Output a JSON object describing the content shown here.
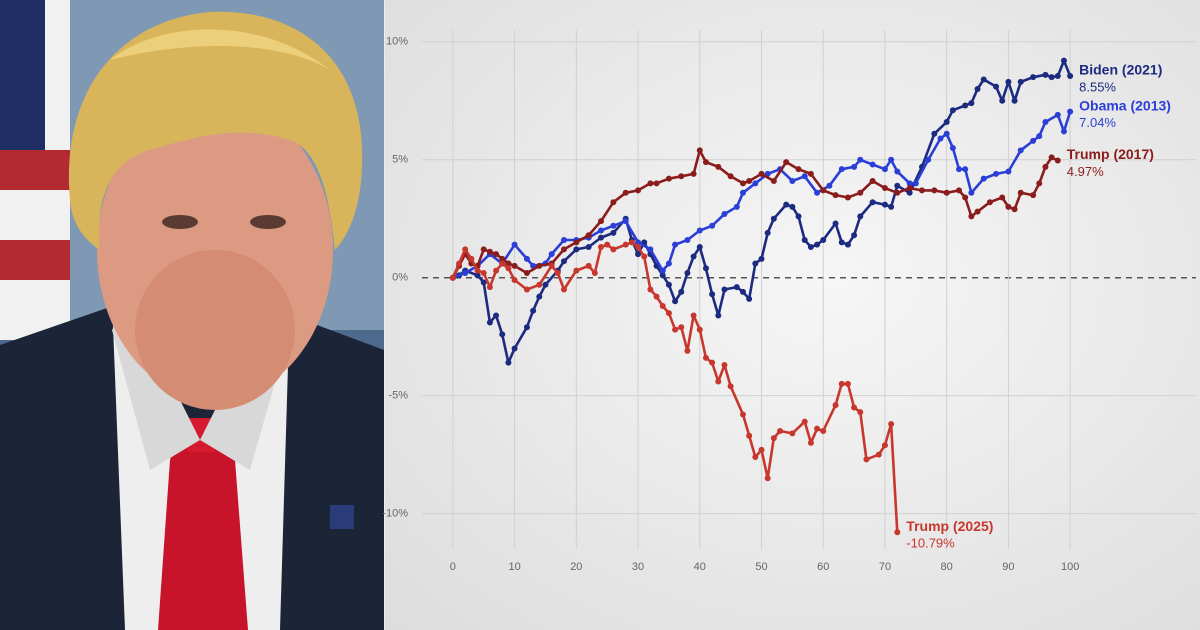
{
  "chart_data": {
    "type": "line",
    "xlim": [
      -5,
      105
    ],
    "ylim": [
      -11.5,
      10.5
    ],
    "xticks": [
      0,
      10,
      20,
      30,
      40,
      50,
      60,
      70,
      80,
      90,
      100
    ],
    "yticks": [
      {
        "value": 10,
        "label": "10%"
      },
      {
        "value": 5,
        "label": "5%"
      },
      {
        "value": 0,
        "label": "0%"
      },
      {
        "value": -5,
        "label": "-5%"
      },
      {
        "value": -10,
        "label": "-10%"
      }
    ],
    "grid": true,
    "series": [
      {
        "name": "Biden (2021)",
        "color": "#1c2a80",
        "x": [
          0,
          1,
          2,
          4,
          5,
          6,
          7,
          8,
          9,
          10,
          12,
          13,
          14,
          15,
          17,
          18,
          20,
          22,
          24,
          26,
          28,
          29,
          30,
          31,
          32,
          33,
          34,
          35,
          36,
          37,
          38,
          39,
          40,
          41,
          42,
          43,
          44,
          46,
          47,
          48,
          49,
          50,
          51,
          52,
          54,
          55,
          56,
          57,
          58,
          59,
          60,
          62,
          63,
          64,
          65,
          66,
          68,
          70,
          71,
          72,
          74,
          76,
          78,
          80,
          81,
          83,
          84,
          85,
          86,
          88,
          89,
          90,
          91,
          92,
          94,
          96,
          97,
          98,
          99,
          100
        ],
        "values": [
          0,
          0.1,
          0.3,
          0.1,
          -0.2,
          -1.9,
          -1.6,
          -2.4,
          -3.6,
          -3.0,
          -2.1,
          -1.4,
          -0.8,
          -0.3,
          0.3,
          0.7,
          1.2,
          1.3,
          1.7,
          1.9,
          2.5,
          1.6,
          1.0,
          1.5,
          1.0,
          0.5,
          0.1,
          -0.3,
          -1.0,
          -0.6,
          0.2,
          0.9,
          1.3,
          0.4,
          -0.7,
          -1.6,
          -0.5,
          -0.4,
          -0.6,
          -0.9,
          0.6,
          0.8,
          1.9,
          2.5,
          3.1,
          3.0,
          2.6,
          1.6,
          1.3,
          1.4,
          1.6,
          2.3,
          1.5,
          1.4,
          1.8,
          2.6,
          3.2,
          3.1,
          3.0,
          3.9,
          3.6,
          4.7,
          6.1,
          6.6,
          7.1,
          7.3,
          7.4,
          8.0,
          8.4,
          8.1,
          7.5,
          8.3,
          7.5,
          8.3,
          8.5,
          8.6,
          8.5,
          8.55,
          9.2,
          8.55
        ],
        "value_labels": [
          null,
          null,
          null,
          null,
          null,
          null,
          null,
          null,
          null,
          null,
          null,
          null,
          null,
          null,
          null,
          null,
          null,
          null,
          null,
          null,
          null,
          null,
          null,
          null,
          null,
          null,
          null,
          null,
          null,
          null,
          null,
          null,
          null,
          null,
          null,
          null,
          null,
          null,
          null,
          null,
          null,
          null,
          null,
          null,
          null,
          null,
          null,
          null,
          null,
          null,
          null,
          null,
          null,
          null,
          null,
          null,
          null,
          null,
          null,
          null,
          null,
          null,
          null,
          null,
          null,
          null,
          null,
          null,
          null,
          null,
          null,
          null,
          null,
          null,
          null,
          null,
          null,
          null,
          null,
          "8.55%"
        ]
      },
      {
        "name": "Obama (2013)",
        "color": "#2b3fd6",
        "x": [
          0,
          2,
          4,
          6,
          8,
          10,
          12,
          13,
          15,
          16,
          18,
          20,
          22,
          24,
          26,
          28,
          30,
          32,
          34,
          35,
          36,
          38,
          40,
          42,
          44,
          46,
          47,
          49,
          51,
          53,
          55,
          57,
          59,
          61,
          63,
          65,
          66,
          68,
          70,
          71,
          72,
          74,
          75,
          77,
          79,
          80,
          81,
          82,
          83,
          84,
          86,
          88,
          90,
          92,
          94,
          95,
          96,
          98,
          99,
          100
        ],
        "values": [
          0,
          0.2,
          0.5,
          1.0,
          0.6,
          1.4,
          0.8,
          0.5,
          0.6,
          1.0,
          1.6,
          1.6,
          1.7,
          2.0,
          2.2,
          2.4,
          1.5,
          1.2,
          0.3,
          0.6,
          1.4,
          1.6,
          2.0,
          2.2,
          2.7,
          3.0,
          3.6,
          4.0,
          4.4,
          4.6,
          4.1,
          4.3,
          3.6,
          3.9,
          4.6,
          4.7,
          5.0,
          4.8,
          4.6,
          5.0,
          4.5,
          4.0,
          4.0,
          5.0,
          5.9,
          6.1,
          5.5,
          4.6,
          4.6,
          3.6,
          4.2,
          4.4,
          4.5,
          5.4,
          5.8,
          6.0,
          6.6,
          6.9,
          6.2,
          7.04
        ],
        "value_labels": [
          null,
          null,
          null,
          null,
          null,
          null,
          null,
          null,
          null,
          null,
          null,
          null,
          null,
          null,
          null,
          null,
          null,
          null,
          null,
          null,
          null,
          null,
          null,
          null,
          null,
          null,
          null,
          null,
          null,
          null,
          null,
          null,
          null,
          null,
          null,
          null,
          null,
          null,
          null,
          null,
          null,
          null,
          null,
          null,
          null,
          null,
          null,
          null,
          null,
          null,
          null,
          null,
          null,
          null,
          null,
          null,
          null,
          null,
          null,
          "7.04%"
        ]
      },
      {
        "name": "Trump (2017)",
        "color": "#8b1c1c",
        "x": [
          0,
          1,
          2,
          3,
          4,
          5,
          6,
          7,
          8,
          9,
          10,
          12,
          14,
          16,
          18,
          20,
          22,
          24,
          26,
          28,
          30,
          32,
          33,
          35,
          37,
          39,
          40,
          41,
          43,
          45,
          47,
          48,
          50,
          52,
          54,
          56,
          58,
          60,
          62,
          64,
          66,
          68,
          70,
          72,
          74,
          76,
          78,
          80,
          82,
          83,
          84,
          85,
          87,
          89,
          90,
          91,
          92,
          94,
          95,
          96,
          97,
          98
        ],
        "values": [
          0,
          0.5,
          1.0,
          0.6,
          0.5,
          1.2,
          1.1,
          1.0,
          0.8,
          0.6,
          0.5,
          0.2,
          0.5,
          0.6,
          1.2,
          1.5,
          1.8,
          2.4,
          3.2,
          3.6,
          3.7,
          4.0,
          4.0,
          4.2,
          4.3,
          4.4,
          5.4,
          4.9,
          4.7,
          4.3,
          4.0,
          4.1,
          4.4,
          4.1,
          4.9,
          4.6,
          4.4,
          3.7,
          3.5,
          3.4,
          3.6,
          4.1,
          3.8,
          3.6,
          3.8,
          3.7,
          3.7,
          3.6,
          3.7,
          3.4,
          2.6,
          2.8,
          3.2,
          3.4,
          3.0,
          2.9,
          3.6,
          3.5,
          4.0,
          4.7,
          5.1,
          4.97
        ],
        "value_labels": [
          null,
          null,
          null,
          null,
          null,
          null,
          null,
          null,
          null,
          null,
          null,
          null,
          null,
          null,
          null,
          null,
          null,
          null,
          null,
          null,
          null,
          null,
          null,
          null,
          null,
          null,
          null,
          null,
          null,
          null,
          null,
          null,
          null,
          null,
          null,
          null,
          null,
          null,
          null,
          null,
          null,
          null,
          null,
          null,
          null,
          null,
          null,
          null,
          null,
          null,
          null,
          null,
          null,
          null,
          null,
          null,
          null,
          null,
          null,
          null,
          null,
          "4.97%"
        ]
      },
      {
        "name": "Trump (2025)",
        "color": "#c8372d",
        "x": [
          0,
          1,
          2,
          3,
          4,
          5,
          6,
          7,
          8,
          9,
          10,
          12,
          14,
          16,
          17,
          18,
          20,
          22,
          23,
          24,
          25,
          26,
          28,
          29,
          30,
          31,
          32,
          33,
          34,
          35,
          36,
          37,
          38,
          39,
          40,
          41,
          42,
          43,
          44,
          45,
          47,
          48,
          49,
          50,
          51,
          52,
          53,
          55,
          57,
          58,
          59,
          60,
          62,
          63,
          64,
          65,
          66,
          67,
          69,
          70,
          71,
          72
        ],
        "values": [
          0,
          0.6,
          1.2,
          0.8,
          0.3,
          0.2,
          -0.4,
          0.3,
          0.6,
          0.4,
          -0.1,
          -0.5,
          -0.3,
          0.5,
          0.2,
          -0.5,
          0.3,
          0.5,
          0.2,
          1.3,
          1.4,
          1.2,
          1.4,
          1.5,
          1.3,
          0.9,
          -0.5,
          -0.8,
          -1.2,
          -1.5,
          -2.2,
          -2.1,
          -3.1,
          -1.6,
          -2.2,
          -3.4,
          -3.6,
          -4.4,
          -3.7,
          -4.6,
          -5.8,
          -6.7,
          -7.6,
          -7.3,
          -8.5,
          -6.8,
          -6.5,
          -6.6,
          -6.1,
          -7.0,
          -6.4,
          -6.5,
          -5.4,
          -4.5,
          -4.5,
          -5.5,
          -5.7,
          -7.7,
          -7.5,
          -7.1,
          -6.2,
          -10.79
        ],
        "value_labels": [
          null,
          null,
          null,
          null,
          null,
          null,
          null,
          null,
          null,
          null,
          null,
          null,
          null,
          null,
          null,
          null,
          null,
          null,
          null,
          null,
          null,
          null,
          null,
          null,
          null,
          null,
          null,
          null,
          null,
          null,
          null,
          null,
          null,
          null,
          null,
          null,
          null,
          null,
          null,
          null,
          null,
          null,
          null,
          null,
          null,
          null,
          null,
          null,
          null,
          null,
          null,
          null,
          null,
          null,
          null,
          null,
          null,
          null,
          null,
          null,
          null,
          "-10.79%"
        ]
      }
    ]
  }
}
